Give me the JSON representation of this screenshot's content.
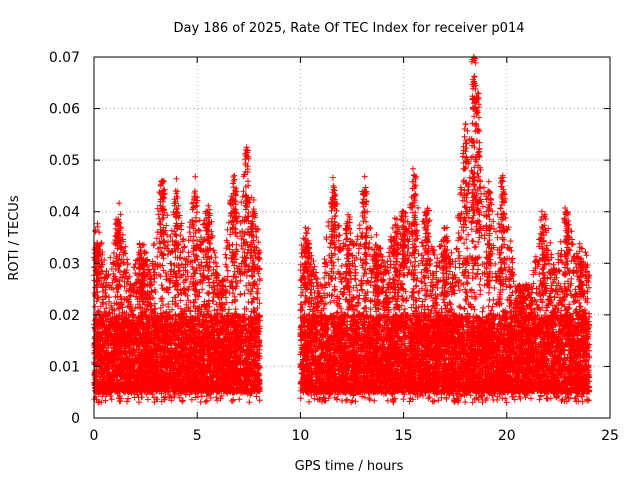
{
  "chart_data": {
    "type": "scatter",
    "title": "Day 186 of 2025, Rate Of TEC Index for receiver p014",
    "xlabel": "GPS time / hours",
    "ylabel": "ROTI / TECUs",
    "xlim": [
      0,
      25
    ],
    "ylim": [
      0,
      0.07
    ],
    "x_ticks": [
      0,
      5,
      10,
      15,
      20,
      25
    ],
    "x_tick_labels": [
      "0",
      "5",
      "10",
      "15",
      "20",
      "25"
    ],
    "y_ticks": [
      0,
      0.01,
      0.02,
      0.03,
      0.04,
      0.05,
      0.06,
      0.07
    ],
    "y_tick_labels": [
      "0",
      "0.01",
      "0.02",
      "0.03",
      "0.04",
      "0.05",
      "0.06",
      "0.07"
    ],
    "grid": true,
    "marker": "+",
    "series_color": "#ff0000",
    "data_segments": [
      {
        "x_range": [
          0.0,
          8.05
        ]
      },
      {
        "x_range": [
          10.0,
          24.0
        ]
      }
    ],
    "typical_band": [
      0.005,
      0.02
    ],
    "peaks": [
      {
        "x": 0.15,
        "y": 0.034
      },
      {
        "x": 1.2,
        "y": 0.038
      },
      {
        "x": 2.3,
        "y": 0.031
      },
      {
        "x": 3.3,
        "y": 0.046
      },
      {
        "x": 4.0,
        "y": 0.043
      },
      {
        "x": 4.9,
        "y": 0.044
      },
      {
        "x": 5.5,
        "y": 0.04
      },
      {
        "x": 6.8,
        "y": 0.047
      },
      {
        "x": 7.4,
        "y": 0.0525
      },
      {
        "x": 7.7,
        "y": 0.04
      },
      {
        "x": 10.3,
        "y": 0.034
      },
      {
        "x": 11.6,
        "y": 0.045
      },
      {
        "x": 12.3,
        "y": 0.037
      },
      {
        "x": 13.1,
        "y": 0.044
      },
      {
        "x": 13.7,
        "y": 0.032
      },
      {
        "x": 14.6,
        "y": 0.036
      },
      {
        "x": 15.0,
        "y": 0.04
      },
      {
        "x": 15.5,
        "y": 0.047
      },
      {
        "x": 16.1,
        "y": 0.04
      },
      {
        "x": 17.0,
        "y": 0.035
      },
      {
        "x": 18.0,
        "y": 0.057
      },
      {
        "x": 18.4,
        "y": 0.07
      },
      {
        "x": 18.6,
        "y": 0.063
      },
      {
        "x": 19.1,
        "y": 0.044
      },
      {
        "x": 19.8,
        "y": 0.047
      },
      {
        "x": 21.8,
        "y": 0.039
      },
      {
        "x": 22.9,
        "y": 0.04
      },
      {
        "x": 23.6,
        "y": 0.031
      }
    ]
  }
}
